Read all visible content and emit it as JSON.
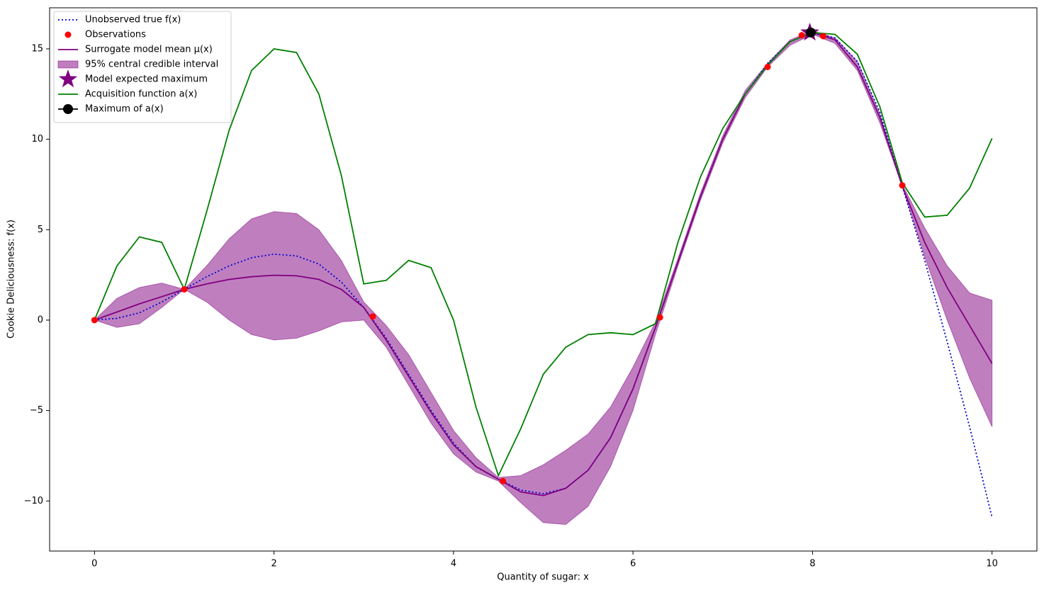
{
  "chart_data": {
    "type": "line",
    "xlabel": "Quantity of sugar: x",
    "ylabel": "Cookie Deliciousness: f(x)",
    "xlim": [
      -0.5,
      10.5
    ],
    "ylim": [
      -12.77,
      17.27
    ],
    "xticks": [
      0,
      2,
      4,
      6,
      8,
      10
    ],
    "yticks": [
      {
        "value": -10,
        "label": "−10"
      },
      {
        "value": -5,
        "label": "−5"
      },
      0,
      5,
      10,
      15
    ],
    "legend": "upper left",
    "x": [
      0,
      0.25,
      0.5,
      0.75,
      1,
      1.25,
      1.5,
      1.75,
      2,
      2.25,
      2.5,
      2.75,
      3,
      3.25,
      3.5,
      3.75,
      4,
      4.25,
      4.5,
      4.75,
      5,
      5.25,
      5.5,
      5.75,
      6,
      6.25,
      6.5,
      6.75,
      7,
      7.25,
      7.5,
      7.75,
      8,
      8.25,
      8.5,
      8.75,
      9,
      9.25,
      9.5,
      9.75,
      10
    ],
    "series": [
      {
        "name": "Unobserved true f(x)",
        "kind": "dotted",
        "color": "#0000cd",
        "values": [
          0,
          0.1,
          0.4,
          1.0,
          1.7,
          2.4,
          3.0,
          3.45,
          3.65,
          3.55,
          3.1,
          2.1,
          0.7,
          -1.0,
          -3.0,
          -5.0,
          -6.8,
          -8.1,
          -8.8,
          -9.4,
          -9.6,
          -9.3,
          -8.3,
          -6.5,
          -3.8,
          -0.4,
          3.2,
          6.8,
          10.0,
          12.5,
          14.2,
          15.4,
          15.9,
          15.6,
          14.3,
          11.5,
          7.4,
          3.3,
          -1.2,
          -5.9,
          -10.9
        ]
      },
      {
        "name": "Observations",
        "kind": "scatter",
        "color": "#ff0000",
        "x": [
          0,
          1,
          3.1,
          4.55,
          6.3,
          7.5,
          7.88,
          8.12,
          9
        ],
        "values": [
          0,
          1.7,
          0.2,
          -8.9,
          0.15,
          14.0,
          15.75,
          15.7,
          7.45
        ]
      },
      {
        "name": "Surrogate model mean μ(x)",
        "kind": "line",
        "color": "#800080",
        "values": [
          0,
          0.45,
          0.9,
          1.3,
          1.7,
          2.0,
          2.25,
          2.4,
          2.48,
          2.45,
          2.25,
          1.7,
          0.7,
          -1.1,
          -3.1,
          -5.1,
          -6.9,
          -8.1,
          -8.8,
          -9.5,
          -9.7,
          -9.3,
          -8.3,
          -6.5,
          -3.8,
          -0.4,
          3.2,
          6.8,
          10.0,
          12.5,
          14.1,
          15.4,
          15.9,
          15.5,
          14.0,
          11.2,
          7.4,
          4.3,
          1.8,
          -0.3,
          -2.4
        ]
      },
      {
        "name": "95% central credible interval",
        "kind": "band",
        "color": "#800080",
        "upper": [
          0,
          1.2,
          1.8,
          2.05,
          1.7,
          3.0,
          4.5,
          5.6,
          6.0,
          5.9,
          5.0,
          3.3,
          1.0,
          -0.3,
          -1.9,
          -4.0,
          -6.1,
          -7.6,
          -8.7,
          -8.6,
          -8.0,
          -7.2,
          -6.3,
          -4.8,
          -2.6,
          -0.1,
          3.4,
          7.0,
          10.2,
          12.7,
          14.2,
          15.5,
          16.0,
          15.6,
          14.3,
          11.4,
          7.5,
          5.1,
          3.0,
          1.5,
          1.1
        ],
        "lower": [
          0,
          -0.4,
          -0.2,
          0.7,
          1.7,
          1.0,
          0.0,
          -0.8,
          -1.1,
          -1.0,
          -0.6,
          -0.1,
          0.0,
          -1.5,
          -3.6,
          -5.7,
          -7.4,
          -8.4,
          -8.9,
          -10.1,
          -11.2,
          -11.3,
          -10.3,
          -8.1,
          -5.0,
          -0.8,
          3.0,
          6.6,
          9.8,
          12.3,
          14.0,
          15.2,
          15.8,
          15.3,
          13.8,
          10.9,
          7.4,
          3.5,
          0.0,
          -3.2,
          -5.9
        ]
      },
      {
        "name": "Model expected maximum",
        "kind": "star",
        "color": "#800080",
        "x": [
          7.97
        ],
        "values": [
          15.9
        ]
      },
      {
        "name": "Acquisition function a(x)",
        "kind": "line",
        "color": "#008000",
        "values": [
          0,
          3.0,
          4.6,
          4.3,
          1.7,
          6.0,
          10.5,
          13.8,
          15.0,
          14.8,
          12.5,
          8.0,
          2.0,
          2.2,
          3.3,
          2.9,
          0.0,
          -4.8,
          -8.6,
          -6.0,
          -3.0,
          -1.5,
          -0.8,
          -0.7,
          -0.8,
          -0.2,
          4.3,
          7.9,
          10.6,
          12.5,
          14.1,
          15.4,
          15.9,
          15.8,
          14.7,
          11.8,
          7.6,
          5.7,
          5.8,
          7.3,
          10.05
        ]
      },
      {
        "name": "Maximum of a(x)",
        "kind": "marker",
        "color": "#000000",
        "x": [
          7.98
        ],
        "values": [
          15.9
        ]
      }
    ]
  }
}
